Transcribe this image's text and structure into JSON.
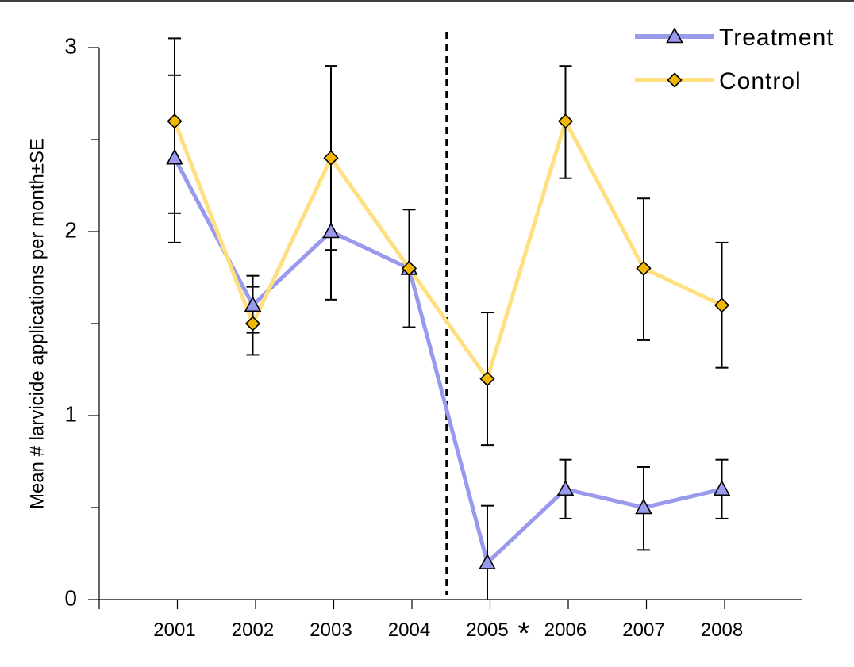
{
  "chart_data": {
    "type": "line",
    "ylabel": "Mean # larvicide applications per month±SE",
    "xlabel": "",
    "ylim": [
      0,
      3
    ],
    "y_ticks": [
      0,
      1,
      2,
      3
    ],
    "y_minor_ticks": [
      0.5,
      1.5,
      2.5
    ],
    "categories": [
      "2001",
      "2002",
      "2003",
      "2004",
      "2005",
      "2006",
      "2007",
      "2008"
    ],
    "annotation": {
      "text": "*",
      "category": "2005"
    },
    "divider_between": [
      "2004",
      "2005"
    ],
    "legend_position": "top-right",
    "series": [
      {
        "name": "Treatment",
        "color": "#9999ee",
        "marker_color": "#9999ee",
        "marker": "triangle",
        "values": [
          2.4,
          1.6,
          2.0,
          1.8,
          0.2,
          0.6,
          0.5,
          0.6
        ],
        "err_low": [
          2.1,
          1.45,
          1.63,
          1.48,
          0.0,
          0.44,
          0.27,
          0.44
        ],
        "err_high": [
          2.85,
          1.76,
          2.9,
          2.12,
          0.51,
          0.76,
          0.72,
          0.76
        ]
      },
      {
        "name": "Control",
        "color": "#ffe080",
        "marker_color": "#f2b705",
        "marker": "diamond",
        "values": [
          2.6,
          1.5,
          2.4,
          1.8,
          1.2,
          2.6,
          1.8,
          1.6
        ],
        "err_low": [
          1.94,
          1.33,
          1.9,
          1.48,
          0.84,
          2.29,
          1.41,
          1.26
        ],
        "err_high": [
          3.05,
          1.7,
          2.9,
          2.12,
          1.56,
          2.9,
          2.18,
          1.94
        ]
      }
    ]
  }
}
